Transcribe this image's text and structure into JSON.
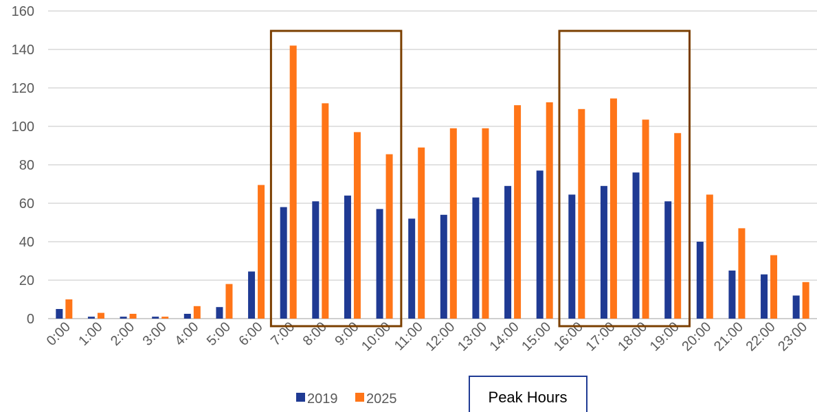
{
  "chart_data": {
    "type": "bar",
    "title": "",
    "xlabel": "",
    "ylabel": "",
    "ylim": [
      0,
      160
    ],
    "yticks": [
      0,
      20,
      40,
      60,
      80,
      100,
      120,
      140,
      160
    ],
    "grid": true,
    "legend_position": "bottom",
    "categories": [
      "0:00",
      "1:00",
      "2:00",
      "3:00",
      "4:00",
      "5:00",
      "6:00",
      "7:00",
      "8:00",
      "9:00",
      "10:00",
      "11:00",
      "12:00",
      "13:00",
      "14:00",
      "15:00",
      "16:00",
      "17:00",
      "18:00",
      "19:00",
      "20:00",
      "21:00",
      "22:00",
      "23:00"
    ],
    "series": [
      {
        "name": "2019",
        "color": "#1F3A93",
        "values": [
          5,
          1,
          1,
          1,
          2.5,
          6,
          24.5,
          58,
          61,
          64,
          57,
          52,
          54,
          63,
          69,
          77,
          64.5,
          69,
          76,
          61,
          40,
          25,
          23,
          12
        ]
      },
      {
        "name": "2025",
        "color": "#FF7518",
        "values": [
          10,
          3,
          2.5,
          1,
          6.5,
          18,
          69.5,
          142,
          112,
          97,
          85.5,
          89,
          99,
          99,
          111,
          112.5,
          109,
          114.5,
          103.5,
          96.5,
          64.5,
          47,
          33,
          19
        ]
      }
    ],
    "annotations": {
      "highlight_color": "#7B3F00",
      "highlighted_ranges": [
        {
          "from": "7:00",
          "to": "10:00"
        },
        {
          "from": "16:00",
          "to": "19:00"
        }
      ],
      "label": "Peak Hours"
    }
  }
}
